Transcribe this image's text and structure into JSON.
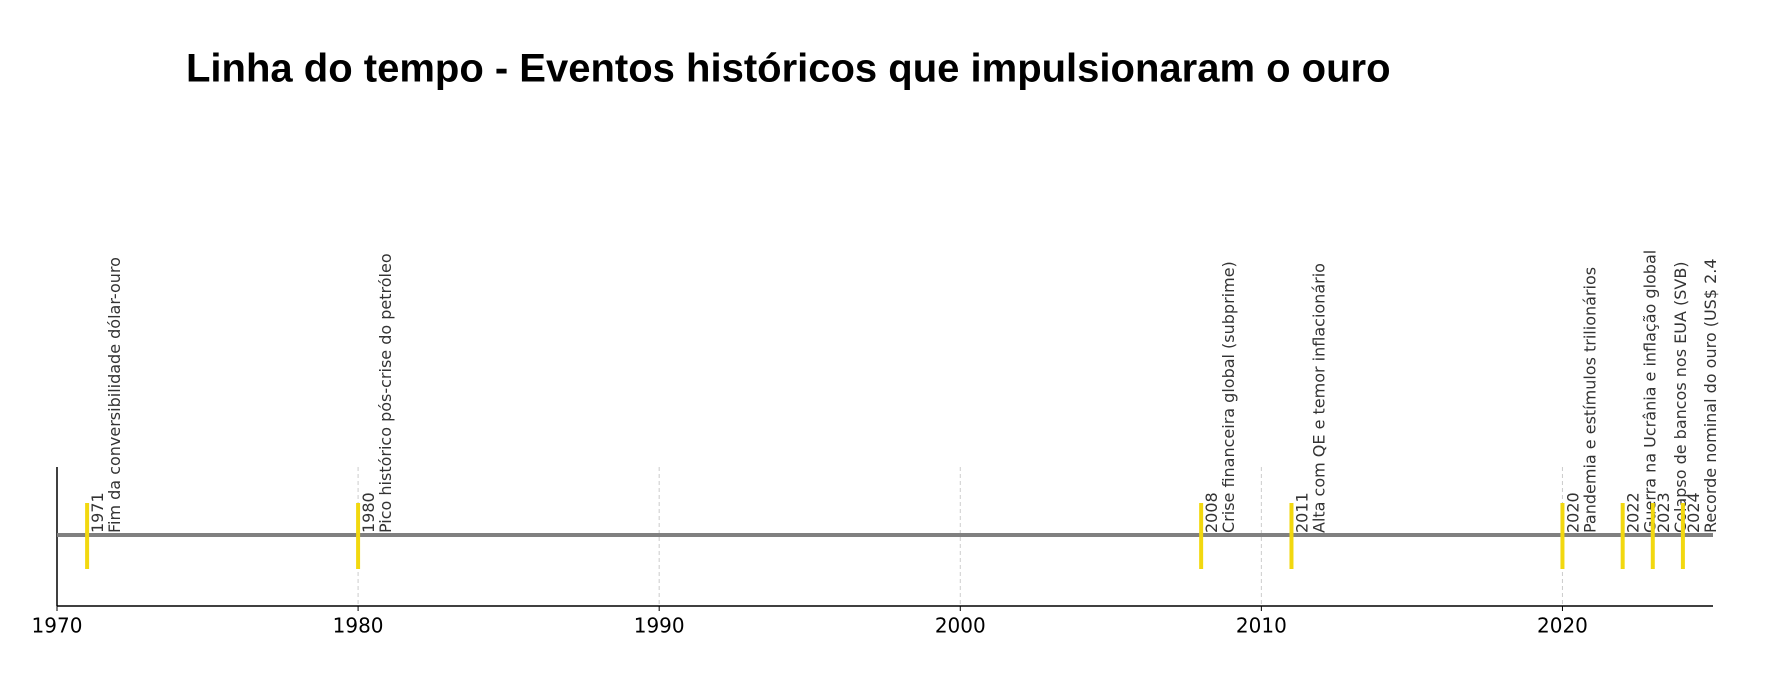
{
  "chart_data": {
    "type": "timeline",
    "title": "Linha do tempo - Eventos históricos que impulsionaram o ouro",
    "xlim": [
      1970,
      2025
    ],
    "xticks": [
      1970,
      1980,
      1990,
      2000,
      2010,
      2020
    ],
    "grid": true,
    "line_color": "#808080",
    "marker_color": "#f2d80f",
    "events": [
      {
        "year": 1971,
        "label": "Fim da conversibilidade dólar-ouro"
      },
      {
        "year": 1980,
        "label": "Pico histórico pós-crise do petróleo"
      },
      {
        "year": 2008,
        "label": "Crise financeira global (subprime)"
      },
      {
        "year": 2011,
        "label": "Alta com QE e temor inflacionário"
      },
      {
        "year": 2020,
        "label": "Pandemia e estímulos trilionários"
      },
      {
        "year": 2022,
        "label": "Guerra na Ucrânia e inflação global"
      },
      {
        "year": 2023,
        "label": "Colapso de bancos nos EUA (SVB)"
      },
      {
        "year": 2024,
        "label": "Recorde nominal do ouro (US$ 2.4"
      }
    ]
  }
}
